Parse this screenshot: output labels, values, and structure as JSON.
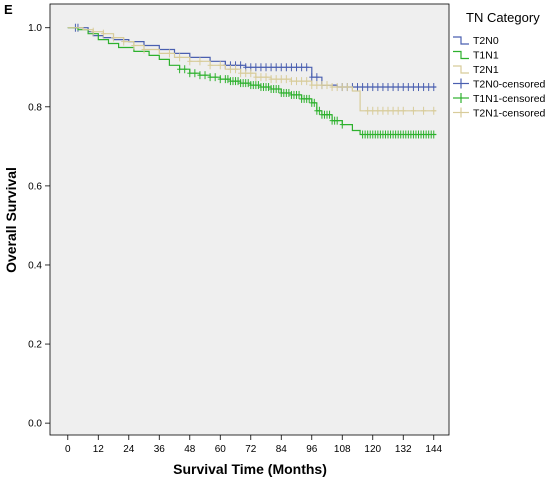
{
  "panel_label": "E",
  "colors": {
    "plot_bg": "#efefef",
    "T2N0": "#4a5fb0",
    "T1N1": "#2db12d",
    "T2N1": "#d8cc9a"
  },
  "chart_data": {
    "type": "line",
    "subtype": "kaplan-meier",
    "xlabel": "Survival Time (Months)",
    "ylabel": "Overall Survival",
    "xlim": [
      -7,
      150
    ],
    "ylim": [
      -0.03,
      1.06
    ],
    "xticks": [
      0,
      12,
      24,
      36,
      48,
      60,
      72,
      84,
      96,
      108,
      120,
      132,
      144
    ],
    "yticks": [
      0.0,
      0.2,
      0.4,
      0.6,
      0.8,
      1.0
    ],
    "ytick_labels": [
      "0.0",
      "0.2",
      "0.4",
      "0.6",
      "0.8",
      "1.0"
    ],
    "legend": {
      "title": "TN Category",
      "placement": "right",
      "entries": [
        "T2N0",
        "T1N1",
        "T2N1",
        "T2N0-censored",
        "T1N1-censored",
        "T2N1-censored"
      ]
    },
    "series": [
      {
        "name": "T2N0",
        "color_key": "T2N0",
        "steps": [
          [
            0,
            1.0
          ],
          [
            8,
            0.99
          ],
          [
            10,
            0.98
          ],
          [
            14,
            0.975
          ],
          [
            18,
            0.97
          ],
          [
            24,
            0.965
          ],
          [
            30,
            0.955
          ],
          [
            36,
            0.945
          ],
          [
            42,
            0.935
          ],
          [
            48,
            0.925
          ],
          [
            56,
            0.915
          ],
          [
            62,
            0.905
          ],
          [
            70,
            0.9
          ],
          [
            96,
            0.875
          ],
          [
            100,
            0.855
          ],
          [
            106,
            0.85
          ],
          [
            145,
            0.85
          ]
        ],
        "censored": [
          3,
          4,
          62,
          64,
          66,
          68,
          70,
          72,
          74,
          76,
          78,
          80,
          82,
          84,
          86,
          88,
          90,
          92,
          94,
          96,
          98,
          100,
          108,
          110,
          112,
          114,
          116,
          118,
          120,
          122,
          124,
          126,
          128,
          130,
          132,
          134,
          136,
          138,
          140,
          142,
          144
        ]
      },
      {
        "name": "T1N1",
        "color_key": "T1N1",
        "steps": [
          [
            0,
            1.0
          ],
          [
            4,
            0.995
          ],
          [
            8,
            0.985
          ],
          [
            12,
            0.97
          ],
          [
            16,
            0.96
          ],
          [
            20,
            0.95
          ],
          [
            26,
            0.94
          ],
          [
            32,
            0.93
          ],
          [
            36,
            0.92
          ],
          [
            40,
            0.905
          ],
          [
            44,
            0.895
          ],
          [
            48,
            0.885
          ],
          [
            52,
            0.88
          ],
          [
            56,
            0.875
          ],
          [
            60,
            0.87
          ],
          [
            64,
            0.865
          ],
          [
            68,
            0.86
          ],
          [
            72,
            0.855
          ],
          [
            76,
            0.85
          ],
          [
            80,
            0.845
          ],
          [
            84,
            0.835
          ],
          [
            88,
            0.83
          ],
          [
            92,
            0.82
          ],
          [
            96,
            0.81
          ],
          [
            98,
            0.79
          ],
          [
            100,
            0.78
          ],
          [
            104,
            0.765
          ],
          [
            108,
            0.755
          ],
          [
            112,
            0.74
          ],
          [
            115,
            0.73
          ],
          [
            145,
            0.73
          ]
        ],
        "censored": [
          44,
          46,
          48,
          50,
          52,
          54,
          56,
          58,
          60,
          62,
          63,
          64,
          65,
          66,
          67,
          68,
          69,
          70,
          71,
          72,
          73,
          74,
          75,
          76,
          77,
          78,
          79,
          80,
          81,
          82,
          83,
          84,
          85,
          86,
          87,
          88,
          89,
          90,
          91,
          92,
          93,
          94,
          95,
          96,
          97,
          98,
          99,
          100,
          101,
          102,
          103,
          104,
          105,
          106,
          108,
          116,
          117,
          118,
          119,
          120,
          121,
          122,
          123,
          124,
          125,
          126,
          127,
          128,
          129,
          130,
          131,
          132,
          133,
          134,
          135,
          136,
          137,
          138,
          139,
          140,
          141,
          142,
          143,
          144
        ]
      },
      {
        "name": "T2N1",
        "color_key": "T2N1",
        "steps": [
          [
            0,
            1.0
          ],
          [
            6,
            0.995
          ],
          [
            10,
            0.99
          ],
          [
            14,
            0.985
          ],
          [
            18,
            0.975
          ],
          [
            22,
            0.965
          ],
          [
            26,
            0.955
          ],
          [
            30,
            0.945
          ],
          [
            36,
            0.935
          ],
          [
            42,
            0.925
          ],
          [
            48,
            0.915
          ],
          [
            56,
            0.905
          ],
          [
            62,
            0.895
          ],
          [
            68,
            0.885
          ],
          [
            74,
            0.875
          ],
          [
            80,
            0.87
          ],
          [
            88,
            0.865
          ],
          [
            96,
            0.855
          ],
          [
            104,
            0.85
          ],
          [
            112,
            0.84
          ],
          [
            115,
            0.79
          ],
          [
            145,
            0.79
          ]
        ],
        "censored": [
          10,
          14,
          18,
          22,
          26,
          30,
          40,
          44,
          48,
          52,
          56,
          60,
          64,
          66,
          68,
          70,
          72,
          74,
          76,
          78,
          80,
          82,
          84,
          86,
          88,
          90,
          92,
          94,
          96,
          98,
          100,
          102,
          104,
          106,
          108,
          110,
          118,
          120,
          122,
          124,
          126,
          128,
          130,
          132,
          136,
          140,
          144
        ]
      }
    ]
  }
}
